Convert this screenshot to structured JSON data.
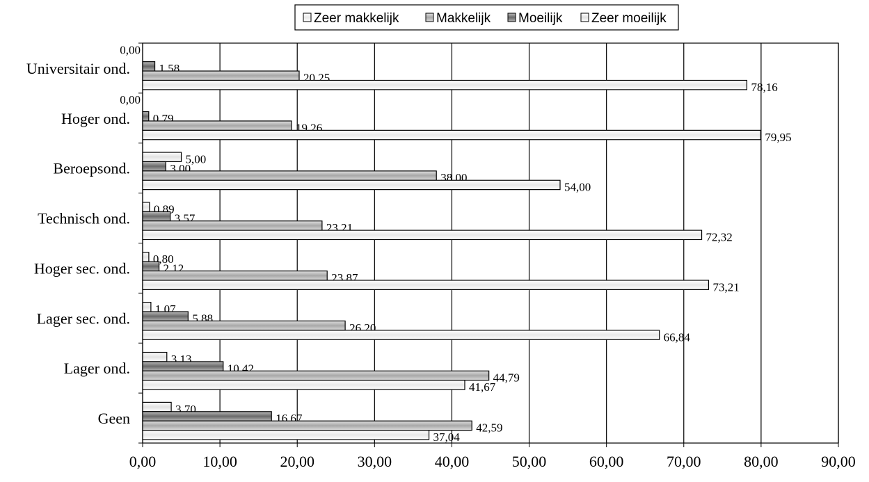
{
  "chart_data": {
    "type": "bar",
    "orientation": "horizontal",
    "categories": [
      "Universitair ond.",
      "Hoger ond.",
      "Beroepsond.",
      "Technisch ond.",
      "Hoger sec. ond.",
      "Lager sec. ond.",
      "Lager ond.",
      "Geen"
    ],
    "series": [
      {
        "name": "Zeer makkelijk",
        "values": [
          78.16,
          79.95,
          54.0,
          72.32,
          73.21,
          66.84,
          41.67,
          37.04
        ],
        "labels": [
          "78,16",
          "79,95",
          "54,00",
          "72,32",
          "73,21",
          "66,84",
          "41,67",
          "37,04"
        ]
      },
      {
        "name": "Makkelijk",
        "values": [
          20.25,
          19.26,
          38.0,
          23.21,
          23.87,
          26.2,
          44.79,
          42.59
        ],
        "labels": [
          "20,25",
          "19,26",
          "38,00",
          "23,21",
          "23,87",
          "26,20",
          "44,79",
          "42,59"
        ]
      },
      {
        "name": "Moeilijk",
        "values": [
          1.58,
          0.79,
          3.0,
          3.57,
          2.12,
          5.88,
          10.42,
          16.67
        ],
        "labels": [
          "1,58",
          "0,79",
          "3,00",
          "3,57",
          "2,12",
          "5,88",
          "10,42",
          "16,67"
        ]
      },
      {
        "name": "Zeer moeilijk",
        "values": [
          0.0,
          0.0,
          5.0,
          0.89,
          0.8,
          1.07,
          3.13,
          3.7
        ],
        "labels": [
          "0,00",
          "0,00",
          "5,00",
          "0,89",
          "0,80",
          "1,07",
          "3,13",
          "3,70"
        ]
      }
    ],
    "xlim": [
      0,
      90
    ],
    "xticks": [
      "0,00",
      "10,00",
      "20,00",
      "30,00",
      "40,00",
      "50,00",
      "60,00",
      "70,00",
      "80,00",
      "90,00"
    ],
    "grid": true,
    "legend_position": "top",
    "colors": {
      "zeer_makkelijk": "#f4f4f4",
      "makkelijk": "#bdbdbd",
      "moeilijk": "#8a8a8a",
      "zeer_moeilijk": "#f4f4f4",
      "outline": "#000000",
      "grid": "#000000"
    }
  }
}
